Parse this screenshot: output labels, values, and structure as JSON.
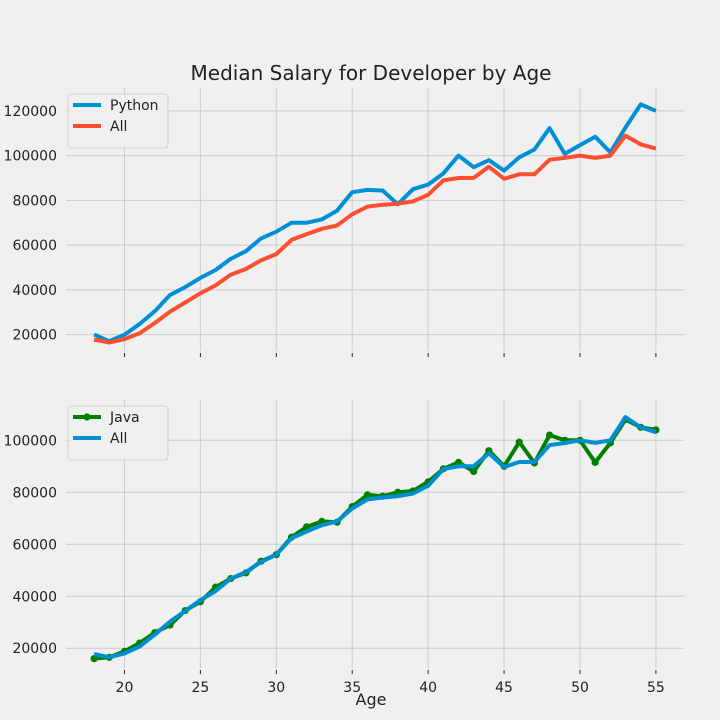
{
  "figure": {
    "background": "#f0f0f0",
    "grid_color": "#cbcbcb"
  },
  "chart_data": [
    {
      "type": "line",
      "title": "Median Salary for Developer by Age",
      "xlabel": "",
      "ylabel": "",
      "grid": true,
      "legend": "top-left",
      "xlim": [
        16.15,
        56.85
      ],
      "ylim": [
        12700,
        130200
      ],
      "xticks": [
        20,
        25,
        30,
        35,
        40,
        45,
        50,
        55
      ],
      "yticks": [
        20000,
        40000,
        60000,
        80000,
        100000,
        120000
      ],
      "x": [
        18,
        19,
        20,
        21,
        22,
        23,
        24,
        25,
        26,
        27,
        28,
        29,
        30,
        31,
        32,
        33,
        34,
        35,
        36,
        37,
        38,
        39,
        40,
        41,
        42,
        43,
        44,
        45,
        46,
        47,
        48,
        49,
        50,
        51,
        52,
        53,
        54,
        55
      ],
      "series": [
        {
          "name": "Python",
          "color": "#008fd5",
          "marker": false,
          "values": [
            20046,
            17100,
            20000,
            24744,
            30500,
            37732,
            41247,
            45372,
            48876,
            53850,
            57287,
            63016,
            65998,
            70003,
            70000,
            71496,
            75370,
            83640,
            84666,
            84392,
            78254,
            85000,
            87038,
            91991,
            100000,
            94796,
            97962,
            93302,
            99240,
            102736,
            112285,
            100771,
            104708,
            108423,
            101407,
            112542,
            122870,
            120000
          ]
        },
        {
          "name": "All",
          "color": "#fc4f30",
          "marker": false,
          "values": [
            17784,
            16500,
            18012,
            20628,
            25206,
            30252,
            34368,
            38496,
            42000,
            46752,
            49320,
            53200,
            56000,
            62316,
            64928,
            67317,
            68748,
            73752,
            77232,
            78000,
            78508,
            79536,
            82488,
            88935,
            90000,
            90056,
            95000,
            89689,
            91633,
            91660,
            98150,
            98964,
            100000,
            98988,
            100000,
            108923,
            105000,
            103117
          ]
        }
      ]
    },
    {
      "type": "line",
      "title": "",
      "xlabel": "Age",
      "ylabel": "",
      "grid": true,
      "legend": "top-left",
      "xlim": [
        16.15,
        56.85
      ],
      "ylim": [
        12400,
        115500
      ],
      "xticks": [
        20,
        25,
        30,
        35,
        40,
        45,
        50,
        55
      ],
      "xticklabels": [
        "20",
        "25",
        "30",
        "35",
        "40",
        "45",
        "50",
        "55"
      ],
      "yticks": [
        20000,
        40000,
        60000,
        80000,
        100000
      ],
      "x": [
        18,
        19,
        20,
        21,
        22,
        23,
        24,
        25,
        26,
        27,
        28,
        29,
        30,
        31,
        32,
        33,
        34,
        35,
        36,
        37,
        38,
        39,
        40,
        41,
        42,
        43,
        44,
        45,
        46,
        47,
        48,
        49,
        50,
        51,
        52,
        53,
        54,
        55
      ],
      "series": [
        {
          "name": "Java",
          "color": "#008000",
          "marker": true,
          "values": [
            16000,
            16500,
            18800,
            22000,
            26000,
            28900,
            34500,
            37900,
            43500,
            46800,
            49000,
            53500,
            56000,
            62700,
            66700,
            68800,
            68500,
            74500,
            79000,
            78500,
            80000,
            80500,
            84000,
            89000,
            91500,
            88000,
            96000,
            90000,
            99300,
            91300,
            102000,
            100000,
            100000,
            91500,
            99000,
            108000,
            105000,
            104000
          ]
        },
        {
          "name": "All",
          "color": "#008fd5",
          "marker": false,
          "values": [
            17784,
            16500,
            18012,
            20628,
            25206,
            30252,
            34368,
            38496,
            42000,
            46752,
            49320,
            53200,
            56000,
            62316,
            64928,
            67317,
            68748,
            73752,
            77232,
            78000,
            78508,
            79536,
            82488,
            88935,
            90000,
            90056,
            95000,
            89689,
            91633,
            91660,
            98150,
            98964,
            100000,
            98988,
            100000,
            108923,
            105000,
            103117
          ]
        }
      ]
    }
  ]
}
